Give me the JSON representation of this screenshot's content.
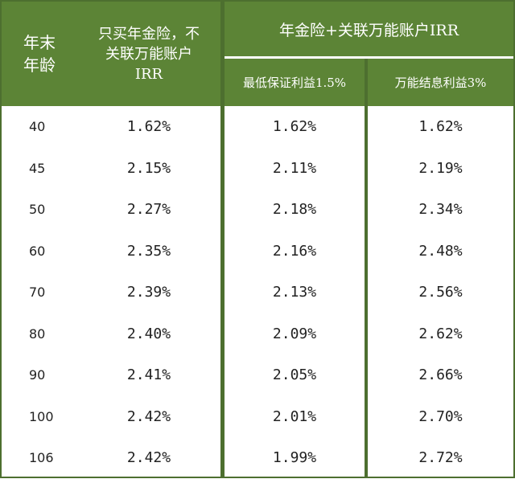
{
  "header": {
    "age": [
      "年末",
      "年龄"
    ],
    "only_annuity": [
      "只买年金险，不",
      "关联万能账户",
      "IRR"
    ],
    "group": "年金险+关联万能账户IRR",
    "sub1": "最低保证利益1.5%",
    "sub2": "万能结息利益3%"
  },
  "rows": [
    {
      "age": "40",
      "v1": "1.62%",
      "v2": "1.62%",
      "v3": "1.62%"
    },
    {
      "age": "45",
      "v1": "2.15%",
      "v2": "2.11%",
      "v3": "2.19%"
    },
    {
      "age": "50",
      "v1": "2.27%",
      "v2": "2.18%",
      "v3": "2.34%"
    },
    {
      "age": "60",
      "v1": "2.35%",
      "v2": "2.16%",
      "v3": "2.48%"
    },
    {
      "age": "70",
      "v1": "2.39%",
      "v2": "2.13%",
      "v3": "2.56%"
    },
    {
      "age": "80",
      "v1": "2.40%",
      "v2": "2.09%",
      "v3": "2.62%"
    },
    {
      "age": "90",
      "v1": "2.41%",
      "v2": "2.05%",
      "v3": "2.66%"
    },
    {
      "age": "100",
      "v1": "2.42%",
      "v2": "2.01%",
      "v3": "2.70%"
    },
    {
      "age": "106",
      "v1": "2.42%",
      "v2": "1.99%",
      "v3": "2.72%"
    }
  ],
  "colors": {
    "header_bg": "#5c8436",
    "border": "#4d6f2f",
    "text": "#222222"
  }
}
